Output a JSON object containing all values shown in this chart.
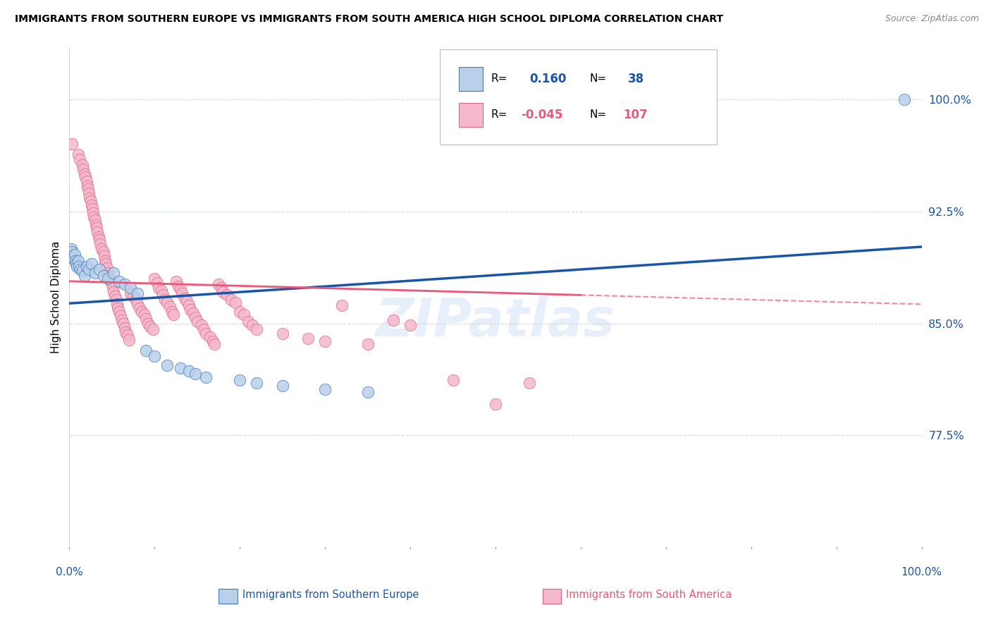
{
  "title": "IMMIGRANTS FROM SOUTHERN EUROPE VS IMMIGRANTS FROM SOUTH AMERICA HIGH SCHOOL DIPLOMA CORRELATION CHART",
  "source": "Source: ZipAtlas.com",
  "ylabel": "High School Diploma",
  "yticks": [
    0.775,
    0.85,
    0.925,
    1.0
  ],
  "ytick_labels": [
    "77.5%",
    "85.0%",
    "92.5%",
    "100.0%"
  ],
  "xmin": 0.0,
  "xmax": 1.0,
  "ymin": 0.7,
  "ymax": 1.035,
  "blue_R": 0.16,
  "blue_N": 38,
  "pink_R": -0.045,
  "pink_N": 107,
  "blue_color": "#b8d0eb",
  "pink_color": "#f5b8cb",
  "blue_edge_color": "#4477bb",
  "pink_edge_color": "#dd6688",
  "blue_line_color": "#1a55aa",
  "pink_line_color": "#ee5577",
  "watermark": "ZIPatlas",
  "legend_blue_label": "Immigrants from Southern Europe",
  "legend_pink_label": "Immigrants from South America",
  "blue_points": [
    [
      0.002,
      0.9
    ],
    [
      0.003,
      0.898
    ],
    [
      0.004,
      0.895
    ],
    [
      0.005,
      0.893
    ],
    [
      0.006,
      0.896
    ],
    [
      0.007,
      0.892
    ],
    [
      0.008,
      0.89
    ],
    [
      0.009,
      0.888
    ],
    [
      0.01,
      0.892
    ],
    [
      0.011,
      0.888
    ],
    [
      0.013,
      0.886
    ],
    [
      0.015,
      0.885
    ],
    [
      0.018,
      0.882
    ],
    [
      0.02,
      0.888
    ],
    [
      0.023,
      0.886
    ],
    [
      0.026,
      0.89
    ],
    [
      0.03,
      0.884
    ],
    [
      0.035,
      0.886
    ],
    [
      0.04,
      0.882
    ],
    [
      0.045,
      0.88
    ],
    [
      0.052,
      0.884
    ],
    [
      0.058,
      0.878
    ],
    [
      0.065,
      0.876
    ],
    [
      0.072,
      0.874
    ],
    [
      0.08,
      0.87
    ],
    [
      0.09,
      0.832
    ],
    [
      0.1,
      0.828
    ],
    [
      0.115,
      0.822
    ],
    [
      0.13,
      0.82
    ],
    [
      0.14,
      0.818
    ],
    [
      0.148,
      0.816
    ],
    [
      0.16,
      0.814
    ],
    [
      0.2,
      0.812
    ],
    [
      0.22,
      0.81
    ],
    [
      0.25,
      0.808
    ],
    [
      0.3,
      0.806
    ],
    [
      0.35,
      0.804
    ],
    [
      0.98,
      1.0
    ]
  ],
  "pink_points": [
    [
      0.003,
      0.97
    ],
    [
      0.01,
      0.963
    ],
    [
      0.012,
      0.96
    ],
    [
      0.015,
      0.956
    ],
    [
      0.016,
      0.953
    ],
    [
      0.018,
      0.95
    ],
    [
      0.019,
      0.948
    ],
    [
      0.02,
      0.945
    ],
    [
      0.021,
      0.942
    ],
    [
      0.022,
      0.94
    ],
    [
      0.023,
      0.937
    ],
    [
      0.024,
      0.934
    ],
    [
      0.025,
      0.932
    ],
    [
      0.026,
      0.929
    ],
    [
      0.027,
      0.927
    ],
    [
      0.028,
      0.924
    ],
    [
      0.029,
      0.921
    ],
    [
      0.03,
      0.919
    ],
    [
      0.031,
      0.916
    ],
    [
      0.032,
      0.914
    ],
    [
      0.033,
      0.911
    ],
    [
      0.034,
      0.908
    ],
    [
      0.035,
      0.906
    ],
    [
      0.036,
      0.903
    ],
    [
      0.038,
      0.9
    ],
    [
      0.04,
      0.898
    ],
    [
      0.041,
      0.895
    ],
    [
      0.042,
      0.892
    ],
    [
      0.043,
      0.89
    ],
    [
      0.044,
      0.887
    ],
    [
      0.045,
      0.884
    ],
    [
      0.046,
      0.882
    ],
    [
      0.048,
      0.879
    ],
    [
      0.05,
      0.876
    ],
    [
      0.051,
      0.874
    ],
    [
      0.052,
      0.871
    ],
    [
      0.053,
      0.868
    ],
    [
      0.055,
      0.866
    ],
    [
      0.056,
      0.863
    ],
    [
      0.057,
      0.86
    ],
    [
      0.058,
      0.858
    ],
    [
      0.06,
      0.855
    ],
    [
      0.062,
      0.852
    ],
    [
      0.063,
      0.85
    ],
    [
      0.065,
      0.847
    ],
    [
      0.066,
      0.844
    ],
    [
      0.068,
      0.842
    ],
    [
      0.07,
      0.839
    ],
    [
      0.072,
      0.87
    ],
    [
      0.075,
      0.868
    ],
    [
      0.078,
      0.866
    ],
    [
      0.08,
      0.863
    ],
    [
      0.082,
      0.86
    ],
    [
      0.085,
      0.858
    ],
    [
      0.088,
      0.856
    ],
    [
      0.09,
      0.853
    ],
    [
      0.092,
      0.85
    ],
    [
      0.095,
      0.848
    ],
    [
      0.098,
      0.846
    ],
    [
      0.1,
      0.88
    ],
    [
      0.103,
      0.877
    ],
    [
      0.105,
      0.874
    ],
    [
      0.108,
      0.872
    ],
    [
      0.11,
      0.869
    ],
    [
      0.112,
      0.866
    ],
    [
      0.115,
      0.864
    ],
    [
      0.118,
      0.861
    ],
    [
      0.12,
      0.858
    ],
    [
      0.122,
      0.856
    ],
    [
      0.125,
      0.878
    ],
    [
      0.128,
      0.875
    ],
    [
      0.13,
      0.873
    ],
    [
      0.132,
      0.87
    ],
    [
      0.135,
      0.867
    ],
    [
      0.138,
      0.865
    ],
    [
      0.14,
      0.862
    ],
    [
      0.142,
      0.859
    ],
    [
      0.145,
      0.857
    ],
    [
      0.148,
      0.854
    ],
    [
      0.15,
      0.851
    ],
    [
      0.155,
      0.849
    ],
    [
      0.158,
      0.846
    ],
    [
      0.16,
      0.843
    ],
    [
      0.165,
      0.841
    ],
    [
      0.168,
      0.838
    ],
    [
      0.17,
      0.836
    ],
    [
      0.175,
      0.876
    ],
    [
      0.178,
      0.874
    ],
    [
      0.18,
      0.871
    ],
    [
      0.185,
      0.869
    ],
    [
      0.19,
      0.866
    ],
    [
      0.195,
      0.864
    ],
    [
      0.2,
      0.858
    ],
    [
      0.205,
      0.856
    ],
    [
      0.21,
      0.851
    ],
    [
      0.215,
      0.849
    ],
    [
      0.22,
      0.846
    ],
    [
      0.25,
      0.843
    ],
    [
      0.28,
      0.84
    ],
    [
      0.3,
      0.838
    ],
    [
      0.32,
      0.862
    ],
    [
      0.35,
      0.836
    ],
    [
      0.38,
      0.852
    ],
    [
      0.4,
      0.849
    ],
    [
      0.45,
      0.812
    ],
    [
      0.5,
      0.796
    ],
    [
      0.54,
      0.81
    ]
  ]
}
